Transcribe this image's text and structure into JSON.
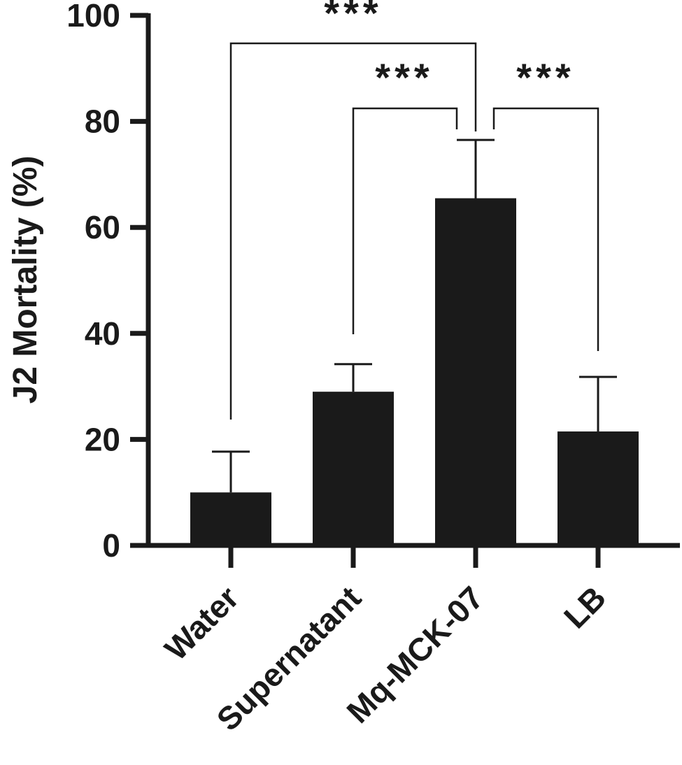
{
  "chart_data": {
    "type": "bar",
    "categories": [
      "Water",
      "Supernatant",
      "Mq-MCK-07",
      "LB"
    ],
    "values": [
      10,
      29,
      65.5,
      21.5
    ],
    "error_upper": [
      17.7,
      34.2,
      76.5,
      31.8
    ],
    "ylabel": "J2 Mortality (%)",
    "xlabel": "",
    "ylim": [
      0,
      100
    ],
    "yticks": [
      "0",
      "20",
      "40",
      "60",
      "80",
      "100"
    ],
    "bar_color": "#1a1a1a",
    "grid": false,
    "significance": [
      {
        "from": "Water",
        "to": "Mq-MCK-07",
        "label": "***"
      },
      {
        "from": "Supernatant",
        "to": "Mq-MCK-07",
        "label": "***"
      },
      {
        "from": "Mq-MCK-07",
        "to": "LB",
        "label": "***"
      }
    ]
  }
}
